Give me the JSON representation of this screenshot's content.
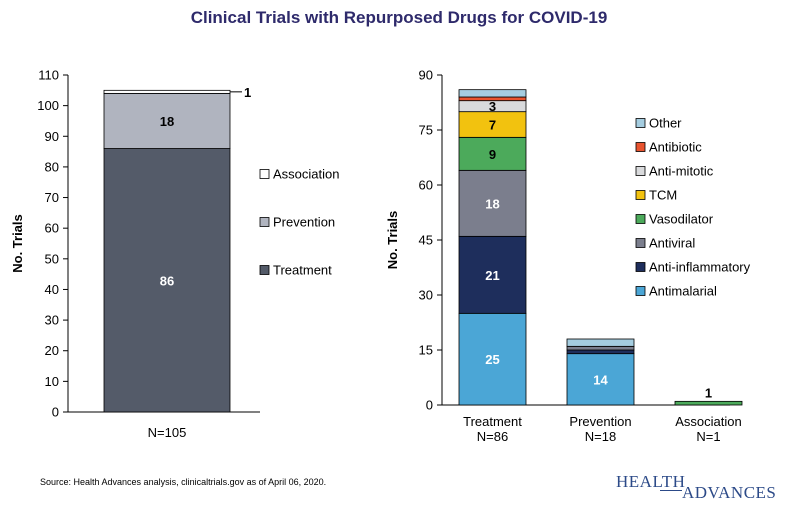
{
  "title": "Clinical Trials with Repurposed Drugs for COVID-19",
  "source_note": "Source:  Health Advances analysis, clinicaltrials.gov as of April 06, 2020.",
  "logo": {
    "word1": "HEALTH",
    "word2": "ADVANCES"
  },
  "chart_data": [
    {
      "type": "bar",
      "stacked": true,
      "title": "",
      "ylabel": "No. Trials",
      "ylim": [
        0,
        110
      ],
      "yticks": [
        0,
        10,
        20,
        30,
        40,
        50,
        60,
        70,
        80,
        90,
        100,
        110
      ],
      "categories": [
        "N=105"
      ],
      "legend": {
        "placement": "right",
        "entries": [
          "Association",
          "Prevention",
          "Treatment"
        ]
      },
      "series": [
        {
          "name": "Treatment",
          "values": [
            86
          ],
          "color": "#545b69",
          "label": "86",
          "label_color": "#ffffff"
        },
        {
          "name": "Prevention",
          "values": [
            18
          ],
          "color": "#b0b4bf",
          "label": "18",
          "label_color": "#000000"
        },
        {
          "name": "Association",
          "values": [
            1
          ],
          "color": "#ffffff",
          "label": "1",
          "label_color": "#000000"
        }
      ]
    },
    {
      "type": "bar",
      "stacked": true,
      "title": "",
      "ylabel": "No. Trials",
      "ylim": [
        0,
        90
      ],
      "yticks": [
        0,
        15,
        30,
        45,
        60,
        75,
        90
      ],
      "categories": [
        "Treatment\nN=86",
        "Prevention\nN=18",
        "Association\nN=1"
      ],
      "legend": {
        "placement": "right",
        "entries": [
          "Other",
          "Antibiotic",
          "Anti-mitotic",
          "TCM",
          "Vasodilator",
          "Antiviral",
          "Anti-inflammatory",
          "Antimalarial"
        ]
      },
      "series": [
        {
          "name": "Antimalarial",
          "values": [
            25,
            14,
            0
          ],
          "color": "#4ba6d6",
          "labels": [
            "25",
            "14",
            ""
          ],
          "label_color": "#ffffff"
        },
        {
          "name": "Anti-inflammatory",
          "values": [
            21,
            1,
            0
          ],
          "color": "#1e2e5c",
          "labels": [
            "21",
            "",
            ""
          ],
          "label_color": "#ffffff"
        },
        {
          "name": "Antiviral",
          "values": [
            18,
            1,
            0
          ],
          "color": "#7b7e8d",
          "labels": [
            "18",
            "",
            ""
          ],
          "label_color": "#ffffff"
        },
        {
          "name": "Vasodilator",
          "values": [
            9,
            0,
            1
          ],
          "color": "#4caa5b",
          "labels": [
            "9",
            "",
            "1"
          ],
          "label_color": "#000000"
        },
        {
          "name": "TCM",
          "values": [
            7,
            0,
            0
          ],
          "color": "#f2c20f",
          "labels": [
            "7",
            "",
            ""
          ],
          "label_color": "#000000"
        },
        {
          "name": "Anti-mitotic",
          "values": [
            3,
            0,
            0
          ],
          "color": "#d9dadc",
          "labels": [
            "3",
            "",
            ""
          ],
          "label_color": "#000000"
        },
        {
          "name": "Antibiotic",
          "values": [
            1,
            0,
            0
          ],
          "color": "#e8542f",
          "labels": [
            "",
            "",
            ""
          ],
          "label_color": "#000000"
        },
        {
          "name": "Other",
          "values": [
            2,
            2,
            0
          ],
          "color": "#a5cde0",
          "labels": [
            "",
            "",
            ""
          ],
          "label_color": "#000000"
        }
      ]
    }
  ]
}
